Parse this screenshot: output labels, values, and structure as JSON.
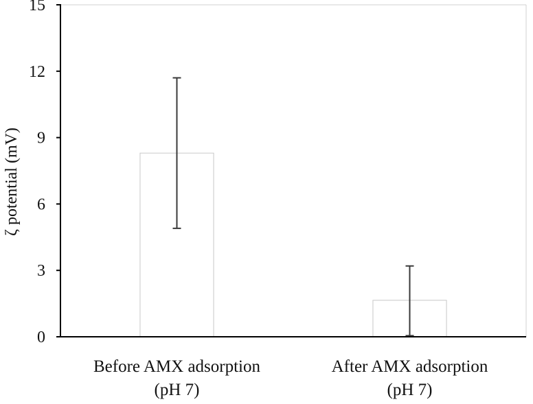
{
  "chart_data": {
    "type": "bar",
    "title": "",
    "xlabel": "",
    "ylabel": "ζ potential (mV)",
    "ylim": [
      0,
      15
    ],
    "yticks": [
      0,
      3,
      6,
      9,
      12,
      15
    ],
    "grid": false,
    "categories": [
      [
        "Before AMX adsorption",
        "(pH 7)"
      ],
      [
        "After AMX adsorption",
        "(pH 7)"
      ]
    ],
    "values": [
      8.3,
      1.65
    ],
    "error_bars": [
      [
        4.9,
        11.7
      ],
      [
        0.05,
        3.2
      ]
    ],
    "colors": {
      "bar_fill": "#ffffff",
      "bar_stroke": "#c8c8c8",
      "error_bar": "#3a3a3a",
      "axis": "#000000",
      "frame": "#d0d0d0"
    }
  }
}
